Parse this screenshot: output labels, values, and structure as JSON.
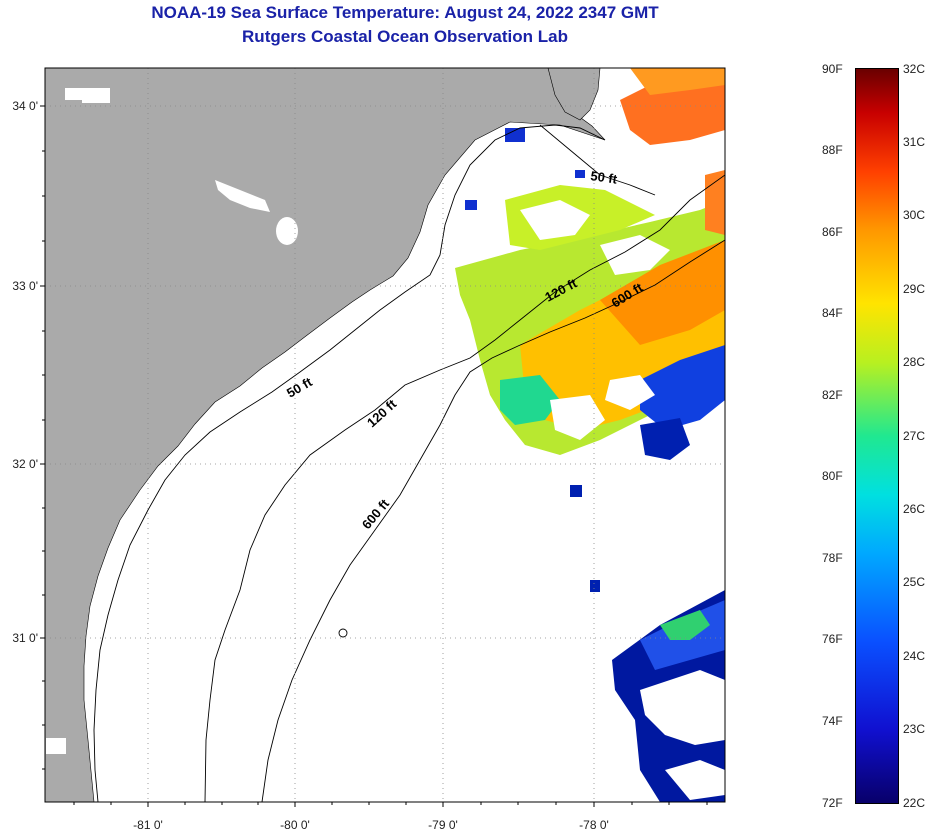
{
  "title_line1": "NOAA-19 Sea Surface Temperature:  August 24, 2022 2347 GMT",
  "title_line2": "Rutgers Coastal Ocean Observation Lab",
  "map": {
    "lat_labels": [
      {
        "text": "34 0'",
        "lat": 34.0
      },
      {
        "text": "33 0'",
        "lat": 33.0
      },
      {
        "text": "32 0'",
        "lat": 32.0
      },
      {
        "text": "31 0'",
        "lat": 31.0
      }
    ],
    "lon_labels": [
      {
        "text": "-81 0'",
        "lon": -81.0
      },
      {
        "text": "-80 0'",
        "lon": -80.0
      },
      {
        "text": "-79 0'",
        "lon": -79.0
      },
      {
        "text": "-78 0'",
        "lon": -78.0
      }
    ],
    "contour_labels": [
      "50 ft",
      "50 ft",
      "120 ft",
      "120 ft",
      "600 ft",
      "600 ft"
    ],
    "colors": {
      "land": "#aaaaaa",
      "ocean_nodata": "#ffffff",
      "grid": "#888888"
    }
  },
  "colorbar": {
    "f_labels": [
      "90F",
      "88F",
      "86F",
      "84F",
      "82F",
      "80F",
      "78F",
      "76F",
      "74F",
      "72F"
    ],
    "c_labels": [
      "32C",
      "31C",
      "30C",
      "29C",
      "28C",
      "27C",
      "26C",
      "25C",
      "24C",
      "23C",
      "22C"
    ],
    "f_range": [
      72,
      90
    ],
    "c_range": [
      22,
      32
    ]
  }
}
